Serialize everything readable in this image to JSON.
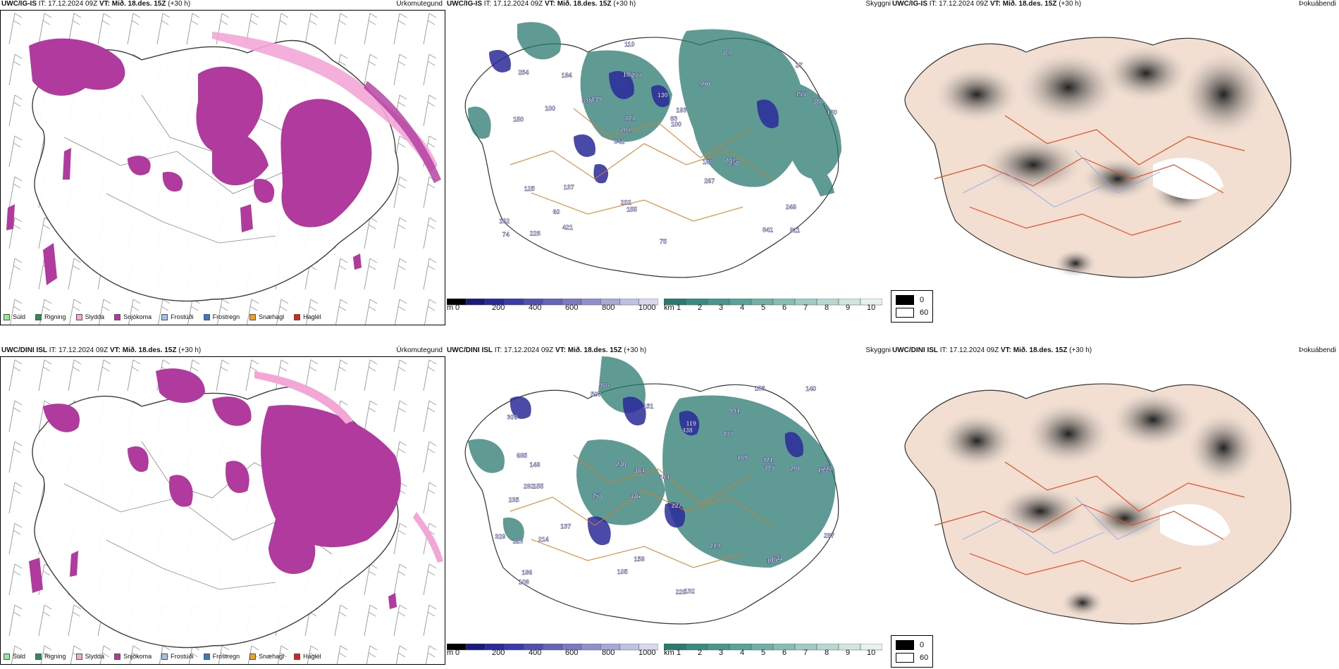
{
  "rows": [
    {
      "model": "UWC/IG-IS",
      "it_label": "IT:",
      "it_value": "17.12.2024 09Z",
      "vt_label": "VT:",
      "vt_value": "Mið. 18.des. 15Z",
      "lead": "(+30 h)"
    },
    {
      "model": "UWC/DINI ISL",
      "it_label": "IT:",
      "it_value": "17.12.2024 09Z",
      "vt_label": "VT:",
      "vt_value": "Mið. 18.des. 15Z",
      "lead": "(+30 h)"
    }
  ],
  "panel_titles": {
    "precip_type": "Úrkomutegund",
    "visibility": "Skyggni",
    "fog_index": "Þokuábendi"
  },
  "precip_legend": [
    {
      "label": "Súld",
      "color": "#90ee90"
    },
    {
      "label": "Rigning",
      "color": "#2e8b57"
    },
    {
      "label": "Slydda",
      "color": "#f4a6d7"
    },
    {
      "label": "Snjókoma",
      "color": "#b03a9e"
    },
    {
      "label": "Frostúði",
      "color": "#9cc3f0"
    },
    {
      "label": "Frostregn",
      "color": "#3a78c8"
    },
    {
      "label": "Snæhagl",
      "color": "#f0a020"
    },
    {
      "label": "Haglél",
      "color": "#e0201a"
    }
  ],
  "ceiling_bar": {
    "unit": "m",
    "ticks": [
      "0",
      "200",
      "400",
      "600",
      "800",
      "1000"
    ],
    "colors": [
      "#000000",
      "#1a1a7a",
      "#2a2a9a",
      "#3a3aa8",
      "#5050b0",
      "#6464b8",
      "#7a7ac4",
      "#9090cc",
      "#a8a8d8",
      "#c0c0e4",
      "#d8d8ee"
    ]
  },
  "visibility_bar": {
    "unit": "km",
    "ticks": [
      "1",
      "2",
      "3",
      "4",
      "5",
      "6",
      "7",
      "8",
      "9",
      "10"
    ],
    "colors": [
      "#2a7a70",
      "#3a8a80",
      "#4a968c",
      "#5aa298",
      "#70b0a6",
      "#86beb4",
      "#9ecbc2",
      "#b6d8d0",
      "#cee6df",
      "#e6f2ee"
    ]
  },
  "fog_bar": {
    "ticks": [
      "0",
      "60"
    ],
    "colors": [
      "#000000",
      "#ffffff"
    ]
  },
  "ceiling_labels": [
    [
      "811",
      "150",
      "27",
      "841",
      "490",
      "228",
      "107",
      "130",
      "125",
      "139",
      "162",
      "60",
      "277",
      "193",
      "258",
      "254",
      "110",
      "130",
      "186",
      "155",
      "204",
      "202",
      "121",
      "184",
      "84",
      "137",
      "841",
      "248",
      "207",
      "75",
      "348",
      "100",
      "267",
      "421",
      "388",
      "83",
      "74",
      "155",
      "100"
    ],
    [
      "966",
      "991",
      "198",
      "336",
      "227",
      "155",
      "309",
      "277",
      "235",
      "438",
      "744",
      "108",
      "507",
      "153",
      "220",
      "132",
      "158",
      "186",
      "169",
      "137",
      "148",
      "292",
      "212",
      "298",
      "329",
      "685",
      "384",
      "305",
      "633",
      "123",
      "109",
      "119",
      "214",
      "230",
      "214",
      "297",
      "421",
      "105",
      "140",
      "151",
      "186"
    ]
  ]
}
